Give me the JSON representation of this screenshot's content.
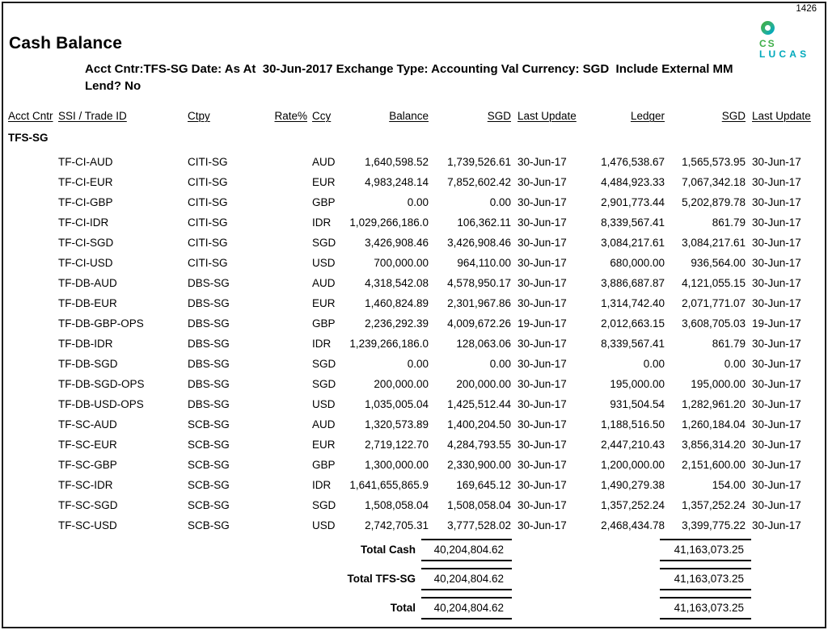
{
  "page": {
    "page_number": "1426",
    "title": "Cash Balance",
    "params_line1": "Acct Cntr:TFS-SG Date: As At  30-Jun-2017 Exchange Type: Accounting Val Currency: SGD  Include External MM",
    "params_line2": "Lend? No",
    "logo": {
      "text_top": "CS",
      "text_bottom": "LUCAS",
      "green": "#3fae49",
      "teal": "#00a9bc"
    }
  },
  "table": {
    "headers": [
      "Acct Cntr",
      "SSI / Trade ID",
      "Ctpy",
      "Rate%",
      "Ccy",
      "Balance",
      "SGD",
      "Last Update",
      "Ledger",
      "SGD",
      "Last Update"
    ],
    "group": "TFS-SG",
    "rows": [
      {
        "ssi": "TF-CI-AUD",
        "ctpy": "CITI-SG",
        "ccy": "AUD",
        "balance": "1,640,598.52",
        "sgd": "1,739,526.61",
        "last_update": "30-Jun-17",
        "ledger": "1,476,538.67",
        "ledger_sgd": "1,565,573.95",
        "ledger_update": "30-Jun-17"
      },
      {
        "ssi": "TF-CI-EUR",
        "ctpy": "CITI-SG",
        "ccy": "EUR",
        "balance": "4,983,248.14",
        "sgd": "7,852,602.42",
        "last_update": "30-Jun-17",
        "ledger": "4,484,923.33",
        "ledger_sgd": "7,067,342.18",
        "ledger_update": "30-Jun-17"
      },
      {
        "ssi": "TF-CI-GBP",
        "ctpy": "CITI-SG",
        "ccy": "GBP",
        "balance": "0.00",
        "sgd": "0.00",
        "last_update": "30-Jun-17",
        "ledger": "2,901,773.44",
        "ledger_sgd": "5,202,879.78",
        "ledger_update": "30-Jun-17"
      },
      {
        "ssi": "TF-CI-IDR",
        "ctpy": "CITI-SG",
        "ccy": "IDR",
        "balance": "1,029,266,186.0",
        "sgd": "106,362.11",
        "last_update": "30-Jun-17",
        "ledger": "8,339,567.41",
        "ledger_sgd": "861.79",
        "ledger_update": "30-Jun-17"
      },
      {
        "ssi": "TF-CI-SGD",
        "ctpy": "CITI-SG",
        "ccy": "SGD",
        "balance": "3,426,908.46",
        "sgd": "3,426,908.46",
        "last_update": "30-Jun-17",
        "ledger": "3,084,217.61",
        "ledger_sgd": "3,084,217.61",
        "ledger_update": "30-Jun-17"
      },
      {
        "ssi": "TF-CI-USD",
        "ctpy": "CITI-SG",
        "ccy": "USD",
        "balance": "700,000.00",
        "sgd": "964,110.00",
        "last_update": "30-Jun-17",
        "ledger": "680,000.00",
        "ledger_sgd": "936,564.00",
        "ledger_update": "30-Jun-17"
      },
      {
        "ssi": "TF-DB-AUD",
        "ctpy": "DBS-SG",
        "ccy": "AUD",
        "balance": "4,318,542.08",
        "sgd": "4,578,950.17",
        "last_update": "30-Jun-17",
        "ledger": "3,886,687.87",
        "ledger_sgd": "4,121,055.15",
        "ledger_update": "30-Jun-17"
      },
      {
        "ssi": "TF-DB-EUR",
        "ctpy": "DBS-SG",
        "ccy": "EUR",
        "balance": "1,460,824.89",
        "sgd": "2,301,967.86",
        "last_update": "30-Jun-17",
        "ledger": "1,314,742.40",
        "ledger_sgd": "2,071,771.07",
        "ledger_update": "30-Jun-17"
      },
      {
        "ssi": "TF-DB-GBP-OPS",
        "ctpy": "DBS-SG",
        "ccy": "GBP",
        "balance": "2,236,292.39",
        "sgd": "4,009,672.26",
        "last_update": "19-Jun-17",
        "ledger": "2,012,663.15",
        "ledger_sgd": "3,608,705.03",
        "ledger_update": "19-Jun-17"
      },
      {
        "ssi": "TF-DB-IDR",
        "ctpy": "DBS-SG",
        "ccy": "IDR",
        "balance": "1,239,266,186.0",
        "sgd": "128,063.06",
        "last_update": "30-Jun-17",
        "ledger": "8,339,567.41",
        "ledger_sgd": "861.79",
        "ledger_update": "30-Jun-17"
      },
      {
        "ssi": "TF-DB-SGD",
        "ctpy": "DBS-SG",
        "ccy": "SGD",
        "balance": "0.00",
        "sgd": "0.00",
        "last_update": "30-Jun-17",
        "ledger": "0.00",
        "ledger_sgd": "0.00",
        "ledger_update": "30-Jun-17"
      },
      {
        "ssi": "TF-DB-SGD-OPS",
        "ctpy": "DBS-SG",
        "ccy": "SGD",
        "balance": "200,000.00",
        "sgd": "200,000.00",
        "last_update": "30-Jun-17",
        "ledger": "195,000.00",
        "ledger_sgd": "195,000.00",
        "ledger_update": "30-Jun-17"
      },
      {
        "ssi": "TF-DB-USD-OPS",
        "ctpy": "DBS-SG",
        "ccy": "USD",
        "balance": "1,035,005.04",
        "sgd": "1,425,512.44",
        "last_update": "30-Jun-17",
        "ledger": "931,504.54",
        "ledger_sgd": "1,282,961.20",
        "ledger_update": "30-Jun-17"
      },
      {
        "ssi": "TF-SC-AUD",
        "ctpy": "SCB-SG",
        "ccy": "AUD",
        "balance": "1,320,573.89",
        "sgd": "1,400,204.50",
        "last_update": "30-Jun-17",
        "ledger": "1,188,516.50",
        "ledger_sgd": "1,260,184.04",
        "ledger_update": "30-Jun-17"
      },
      {
        "ssi": "TF-SC-EUR",
        "ctpy": "SCB-SG",
        "ccy": "EUR",
        "balance": "2,719,122.70",
        "sgd": "4,284,793.55",
        "last_update": "30-Jun-17",
        "ledger": "2,447,210.43",
        "ledger_sgd": "3,856,314.20",
        "ledger_update": "30-Jun-17"
      },
      {
        "ssi": "TF-SC-GBP",
        "ctpy": "SCB-SG",
        "ccy": "GBP",
        "balance": "1,300,000.00",
        "sgd": "2,330,900.00",
        "last_update": "30-Jun-17",
        "ledger": "1,200,000.00",
        "ledger_sgd": "2,151,600.00",
        "ledger_update": "30-Jun-17"
      },
      {
        "ssi": "TF-SC-IDR",
        "ctpy": "SCB-SG",
        "ccy": "IDR",
        "balance": "1,641,655,865.9",
        "sgd": "169,645.12",
        "last_update": "30-Jun-17",
        "ledger": "1,490,279.38",
        "ledger_sgd": "154.00",
        "ledger_update": "30-Jun-17"
      },
      {
        "ssi": "TF-SC-SGD",
        "ctpy": "SCB-SG",
        "ccy": "SGD",
        "balance": "1,508,058.04",
        "sgd": "1,508,058.04",
        "last_update": "30-Jun-17",
        "ledger": "1,357,252.24",
        "ledger_sgd": "1,357,252.24",
        "ledger_update": "30-Jun-17"
      },
      {
        "ssi": "TF-SC-USD",
        "ctpy": "SCB-SG",
        "ccy": "USD",
        "balance": "2,742,705.31",
        "sgd": "3,777,528.02",
        "last_update": "30-Jun-17",
        "ledger": "2,468,434.78",
        "ledger_sgd": "3,399,775.22",
        "ledger_update": "30-Jun-17"
      }
    ],
    "totals": [
      {
        "label": "Total Cash",
        "sgd": "40,204,804.62",
        "ledger_sgd": "41,163,073.25"
      },
      {
        "label": "Total TFS-SG",
        "sgd": "40,204,804.62",
        "ledger_sgd": "41,163,073.25"
      },
      {
        "label": "Total",
        "sgd": "40,204,804.62",
        "ledger_sgd": "41,163,073.25"
      }
    ]
  }
}
